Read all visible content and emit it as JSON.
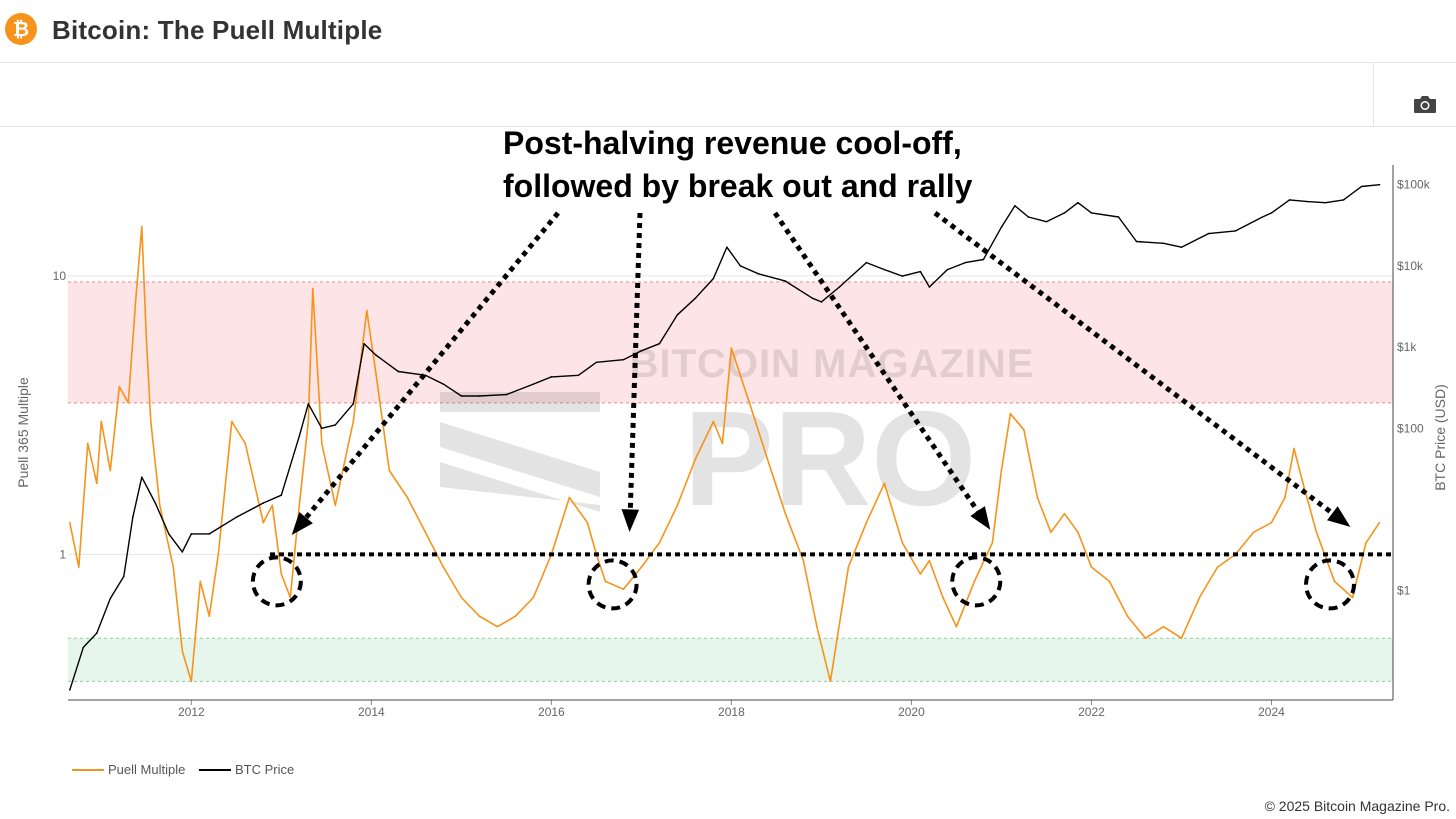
{
  "header": {
    "logo_glyph": "₿",
    "title": "Bitcoin: The Puell Multiple"
  },
  "toolbar": {
    "camera_icon": "camera-icon"
  },
  "chart_data": {
    "type": "line",
    "title": "Bitcoin: The Puell Multiple",
    "annotation": [
      "Post-halving revenue cool-off,",
      "followed by break out and rally"
    ],
    "watermark": [
      "BITCOIN MAGAZINE",
      "PRO"
    ],
    "ylabel_left": "Puell 365 Multiple",
    "ylabel_right": "BTC Price (USD)",
    "x_ticks": [
      "2012",
      "2014",
      "2016",
      "2018",
      "2020",
      "2022",
      "2024"
    ],
    "x_tick_values": [
      2012,
      2014,
      2016,
      2018,
      2020,
      2022,
      2024
    ],
    "xlim": [
      2010.63,
      2025.35
    ],
    "left_axis": {
      "scale": "log",
      "ylim": [
        0.3,
        25
      ],
      "ticks": [
        "1",
        "10"
      ],
      "tick_values": [
        1,
        10
      ]
    },
    "right_axis": {
      "scale": "log",
      "ylim": [
        0.045,
        175000
      ],
      "ticks": [
        "$1",
        "$100",
        "$1k",
        "$10k",
        "$100k"
      ],
      "tick_values": [
        1,
        100,
        1000,
        10000,
        100000
      ]
    },
    "bands": [
      {
        "name": "overvalued-zone",
        "from": 3.5,
        "to": 9.5,
        "color": "#fde4e6"
      },
      {
        "name": "undervalued-zone",
        "from": 0.35,
        "to": 0.5,
        "color": "#e6f6ec"
      }
    ],
    "reference_line": {
      "value": 1,
      "style": "dotted"
    },
    "halving_circles": [
      {
        "x": 2012.95,
        "y": 0.8
      },
      {
        "x": 2016.68,
        "y": 0.78
      },
      {
        "x": 2020.72,
        "y": 0.8
      },
      {
        "x": 2024.65,
        "y": 0.78
      }
    ],
    "series": [
      {
        "name": "Puell Multiple",
        "axis": "left",
        "color": "#f7931a",
        "x": [
          2010.65,
          2010.75,
          2010.85,
          2010.95,
          2011.0,
          2011.1,
          2011.2,
          2011.3,
          2011.38,
          2011.45,
          2011.5,
          2011.55,
          2011.65,
          2011.8,
          2011.9,
          2012.0,
          2012.1,
          2012.2,
          2012.3,
          2012.45,
          2012.6,
          2012.8,
          2012.9,
          2013.0,
          2013.1,
          2013.2,
          2013.3,
          2013.35,
          2013.45,
          2013.6,
          2013.8,
          2013.95,
          2014.05,
          2014.2,
          2014.4,
          2014.6,
          2014.8,
          2015.0,
          2015.2,
          2015.4,
          2015.6,
          2015.8,
          2016.0,
          2016.2,
          2016.4,
          2016.5,
          2016.6,
          2016.8,
          2017.0,
          2017.2,
          2017.4,
          2017.6,
          2017.8,
          2017.9,
          2018.0,
          2018.2,
          2018.4,
          2018.6,
          2018.8,
          2018.95,
          2019.1,
          2019.3,
          2019.5,
          2019.7,
          2019.9,
          2020.1,
          2020.2,
          2020.35,
          2020.5,
          2020.7,
          2020.9,
          2021.0,
          2021.1,
          2021.25,
          2021.4,
          2021.55,
          2021.7,
          2021.85,
          2022.0,
          2022.2,
          2022.4,
          2022.6,
          2022.8,
          2023.0,
          2023.2,
          2023.4,
          2023.6,
          2023.8,
          2024.0,
          2024.15,
          2024.25,
          2024.35,
          2024.5,
          2024.7,
          2024.9,
          2025.05,
          2025.2
        ],
        "values": [
          1.3,
          0.9,
          2.5,
          1.8,
          3.0,
          2.0,
          4.0,
          3.5,
          8.0,
          15.0,
          6.0,
          3.0,
          1.5,
          0.9,
          0.45,
          0.35,
          0.8,
          0.6,
          1.0,
          3.0,
          2.5,
          1.3,
          1.5,
          0.85,
          0.7,
          1.5,
          3.0,
          9.0,
          2.5,
          1.5,
          3.0,
          7.5,
          4.5,
          2.0,
          1.6,
          1.2,
          0.9,
          0.7,
          0.6,
          0.55,
          0.6,
          0.7,
          1.0,
          1.6,
          1.3,
          1.0,
          0.8,
          0.75,
          0.9,
          1.1,
          1.5,
          2.2,
          3.0,
          2.5,
          5.5,
          3.5,
          2.2,
          1.4,
          0.95,
          0.55,
          0.35,
          0.9,
          1.3,
          1.8,
          1.1,
          0.85,
          0.95,
          0.7,
          0.55,
          0.8,
          1.1,
          2.0,
          3.2,
          2.8,
          1.6,
          1.2,
          1.4,
          1.2,
          0.9,
          0.8,
          0.6,
          0.5,
          0.55,
          0.5,
          0.7,
          0.9,
          1.0,
          1.2,
          1.3,
          1.6,
          2.4,
          1.8,
          1.2,
          0.8,
          0.7,
          1.1,
          1.3
        ]
      },
      {
        "name": "BTC Price",
        "axis": "right",
        "color": "#000000",
        "x": [
          2010.65,
          2010.8,
          2010.95,
          2011.1,
          2011.25,
          2011.35,
          2011.45,
          2011.6,
          2011.75,
          2011.9,
          2012.0,
          2012.2,
          2012.5,
          2012.8,
          2013.0,
          2013.2,
          2013.3,
          2013.45,
          2013.6,
          2013.8,
          2013.92,
          2014.05,
          2014.3,
          2014.6,
          2014.8,
          2015.0,
          2015.2,
          2015.5,
          2015.8,
          2016.0,
          2016.3,
          2016.5,
          2016.8,
          2017.0,
          2017.2,
          2017.4,
          2017.6,
          2017.8,
          2017.95,
          2018.1,
          2018.3,
          2018.6,
          2018.9,
          2019.0,
          2019.2,
          2019.5,
          2019.7,
          2019.9,
          2020.1,
          2020.2,
          2020.4,
          2020.6,
          2020.8,
          2021.0,
          2021.15,
          2021.3,
          2021.5,
          2021.7,
          2021.85,
          2022.0,
          2022.3,
          2022.5,
          2022.8,
          2023.0,
          2023.3,
          2023.6,
          2023.9,
          2024.0,
          2024.2,
          2024.4,
          2024.6,
          2024.8,
          2025.0,
          2025.2
        ],
        "values": [
          0.06,
          0.2,
          0.3,
          0.8,
          1.5,
          8,
          25,
          12,
          5,
          3,
          5,
          5,
          8,
          12,
          15,
          80,
          200,
          100,
          110,
          200,
          1100,
          800,
          500,
          450,
          350,
          250,
          250,
          260,
          350,
          430,
          450,
          650,
          700,
          900,
          1100,
          2500,
          4000,
          7000,
          17000,
          10000,
          8000,
          6500,
          4000,
          3600,
          5500,
          11000,
          9000,
          7500,
          8500,
          5500,
          9000,
          11000,
          12000,
          30000,
          55000,
          40000,
          35000,
          45000,
          60000,
          45000,
          40000,
          20000,
          19000,
          17000,
          25000,
          27000,
          40000,
          45000,
          65000,
          62000,
          60000,
          65000,
          95000,
          100000
        ]
      }
    ]
  },
  "legend": {
    "items": [
      {
        "label": "Puell Multiple",
        "color": "#f7931a"
      },
      {
        "label": "BTC Price",
        "color": "#000000"
      }
    ]
  },
  "footer": {
    "copyright": "© 2025 Bitcoin Magazine Pro."
  }
}
